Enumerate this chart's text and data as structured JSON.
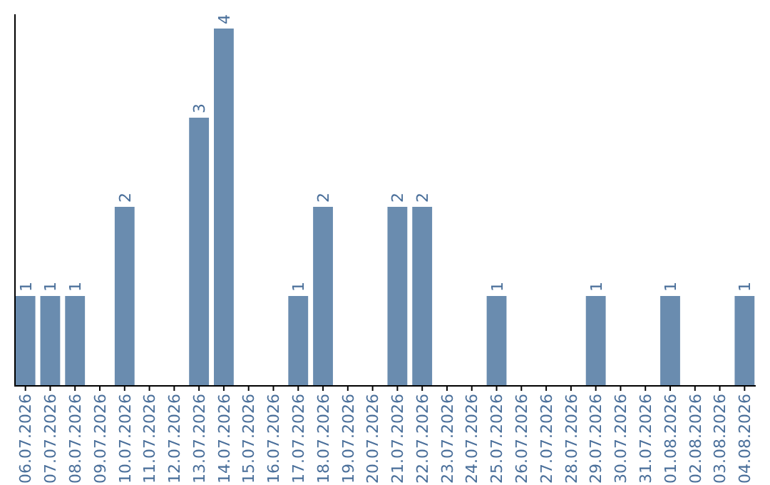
{
  "chart_data": {
    "type": "bar",
    "categories": [
      "06.07.2026",
      "07.07.2026",
      "08.07.2026",
      "09.07.2026",
      "10.07.2026",
      "11.07.2026",
      "12.07.2026",
      "13.07.2026",
      "14.07.2026",
      "15.07.2026",
      "16.07.2026",
      "17.07.2026",
      "18.07.2026",
      "19.07.2026",
      "20.07.2026",
      "21.07.2026",
      "22.07.2026",
      "23.07.2026",
      "24.07.2026",
      "25.07.2026",
      "26.07.2026",
      "27.07.2026",
      "28.07.2026",
      "29.07.2026",
      "30.07.2026",
      "31.07.2026",
      "01.08.2026",
      "02.08.2026",
      "03.08.2026",
      "04.08.2026"
    ],
    "values": [
      1,
      1,
      1,
      0,
      2,
      0,
      0,
      3,
      4,
      0,
      0,
      1,
      2,
      0,
      0,
      2,
      2,
      0,
      0,
      1,
      0,
      0,
      0,
      1,
      0,
      0,
      1,
      0,
      0,
      1
    ],
    "value_labels": [
      "1",
      "1",
      "1",
      null,
      "2",
      null,
      null,
      "3",
      "4",
      null,
      null,
      "1",
      "2",
      null,
      null,
      "2",
      "2",
      null,
      null,
      "1",
      null,
      null,
      null,
      "1",
      null,
      null,
      "1",
      null,
      null,
      "1"
    ],
    "color": "#6a8caf",
    "grid": false,
    "tick_labels": "x"
  }
}
